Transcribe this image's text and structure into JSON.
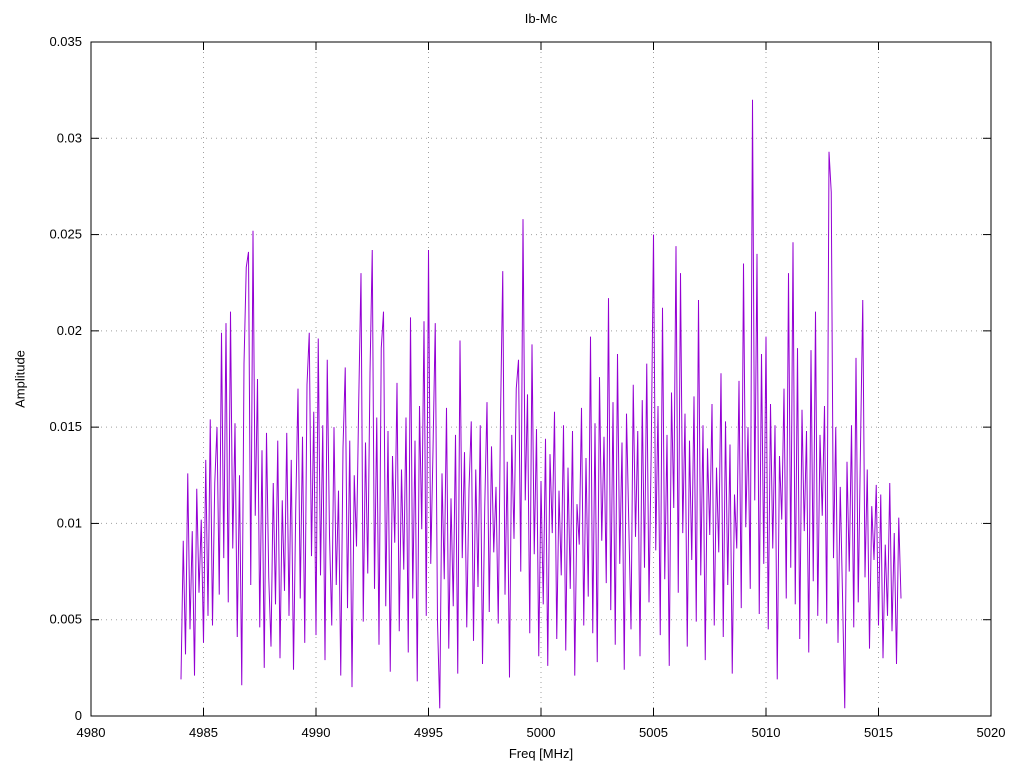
{
  "chart": {
    "title": "Ib-Mc",
    "xlabel": "Freq [MHz]",
    "ylabel": "Amplitude"
  },
  "chart_data": {
    "type": "line",
    "title": "Ib-Mc",
    "xlabel": "Freq [MHz]",
    "ylabel": "Amplitude",
    "xlim": [
      4980,
      5020
    ],
    "ylim": [
      0,
      0.035
    ],
    "xticks": [
      4980,
      4985,
      4990,
      4995,
      5000,
      5005,
      5010,
      5015,
      5020
    ],
    "yticks": [
      0,
      0.005,
      0.01,
      0.015,
      0.02,
      0.025,
      0.03,
      0.035
    ],
    "ytick_labels": [
      "0",
      "0.005",
      "0.01",
      "0.015",
      "0.02",
      "0.025",
      "0.03",
      "0.035"
    ],
    "grid": true,
    "legend": "none",
    "line_color": "#9400d3",
    "grid_color": "#a0a0a0",
    "series": [
      {
        "name": "Ib-Mc",
        "x_start": 4984.0,
        "x_step": 0.1,
        "values": [
          0.0019,
          0.0091,
          0.0032,
          0.0126,
          0.0045,
          0.0096,
          0.0021,
          0.0118,
          0.0064,
          0.0102,
          0.0038,
          0.0133,
          0.0052,
          0.0154,
          0.0047,
          0.0121,
          0.015,
          0.0063,
          0.0199,
          0.0082,
          0.0204,
          0.0059,
          0.021,
          0.0087,
          0.0152,
          0.0041,
          0.0125,
          0.0016,
          0.0183,
          0.0233,
          0.0241,
          0.0068,
          0.0252,
          0.0104,
          0.0175,
          0.0046,
          0.0138,
          0.0025,
          0.0147,
          0.0072,
          0.0036,
          0.0121,
          0.0058,
          0.0143,
          0.003,
          0.0112,
          0.0065,
          0.0147,
          0.0052,
          0.0133,
          0.0024,
          0.0108,
          0.017,
          0.0061,
          0.0145,
          0.0038,
          0.0172,
          0.0199,
          0.0083,
          0.0158,
          0.0042,
          0.0196,
          0.0073,
          0.0151,
          0.0029,
          0.0185,
          0.0094,
          0.0047,
          0.015,
          0.0068,
          0.0117,
          0.0021,
          0.0139,
          0.0181,
          0.0056,
          0.0143,
          0.0015,
          0.0125,
          0.0088,
          0.0164,
          0.023,
          0.0049,
          0.0142,
          0.0074,
          0.0178,
          0.0242,
          0.0066,
          0.0155,
          0.0037,
          0.0191,
          0.021,
          0.0057,
          0.0148,
          0.0023,
          0.0135,
          0.009,
          0.0173,
          0.0044,
          0.0128,
          0.0076,
          0.0155,
          0.0033,
          0.0207,
          0.0061,
          0.0143,
          0.0018,
          0.0161,
          0.0097,
          0.0205,
          0.0052,
          0.0242,
          0.0079,
          0.0138,
          0.0204,
          0.0049,
          0.0004,
          0.0126,
          0.0071,
          0.016,
          0.0035,
          0.0113,
          0.0057,
          0.0146,
          0.0022,
          0.0195,
          0.0082,
          0.0137,
          0.0046,
          0.0118,
          0.0153,
          0.0039,
          0.0128,
          0.0067,
          0.0151,
          0.0027,
          0.0109,
          0.0163,
          0.0054,
          0.014,
          0.0085,
          0.0119,
          0.0048,
          0.0155,
          0.0231,
          0.0063,
          0.0132,
          0.002,
          0.0146,
          0.0092,
          0.017,
          0.0185,
          0.0075,
          0.0258,
          0.0112,
          0.0167,
          0.0043,
          0.0193,
          0.0084,
          0.0149,
          0.0031,
          0.0122,
          0.0058,
          0.0144,
          0.0026,
          0.0136,
          0.0095,
          0.0158,
          0.004,
          0.0117,
          0.0073,
          0.0151,
          0.0034,
          0.0129,
          0.0066,
          0.0148,
          0.0021,
          0.011,
          0.0089,
          0.016,
          0.0047,
          0.0134,
          0.0062,
          0.0197,
          0.0043,
          0.0152,
          0.0028,
          0.0176,
          0.0091,
          0.0145,
          0.0069,
          0.0217,
          0.0055,
          0.0163,
          0.0037,
          0.0188,
          0.0079,
          0.0142,
          0.0024,
          0.0157,
          0.0101,
          0.0045,
          0.0172,
          0.0093,
          0.0148,
          0.0031,
          0.0164,
          0.0077,
          0.0183,
          0.0059,
          0.0139,
          0.025,
          0.0086,
          0.0161,
          0.0042,
          0.0212,
          0.0071,
          0.0146,
          0.0026,
          0.0168,
          0.0108,
          0.0244,
          0.0064,
          0.023,
          0.0095,
          0.0157,
          0.0036,
          0.0143,
          0.0081,
          0.0166,
          0.0049,
          0.0216,
          0.0073,
          0.0151,
          0.0029,
          0.0139,
          0.0094,
          0.0162,
          0.0047,
          0.0129,
          0.0085,
          0.0178,
          0.0041,
          0.0153,
          0.0068,
          0.0141,
          0.0022,
          0.0115,
          0.0087,
          0.0174,
          0.0056,
          0.0235,
          0.0098,
          0.015,
          0.0066,
          0.032,
          0.0112,
          0.024,
          0.0053,
          0.0188,
          0.0079,
          0.0197,
          0.0045,
          0.0162,
          0.0087,
          0.0151,
          0.0019,
          0.0135,
          0.0102,
          0.017,
          0.0061,
          0.023,
          0.0077,
          0.0246,
          0.0058,
          0.0191,
          0.004,
          0.0159,
          0.0096,
          0.0148,
          0.0033,
          0.019,
          0.007,
          0.021,
          0.0052,
          0.0146,
          0.0104,
          0.0161,
          0.0048,
          0.0293,
          0.0272,
          0.0082,
          0.015,
          0.0038,
          0.0119,
          0.0063,
          0.0004,
          0.0132,
          0.0075,
          0.0151,
          0.0046,
          0.0186,
          0.0059,
          0.014,
          0.0216,
          0.0072,
          0.0128,
          0.0035,
          0.0109,
          0.0081,
          0.012,
          0.0047,
          0.0115,
          0.003,
          0.0089,
          0.0052,
          0.0121,
          0.0044,
          0.0095,
          0.0027,
          0.0103,
          0.0061
        ]
      }
    ]
  }
}
